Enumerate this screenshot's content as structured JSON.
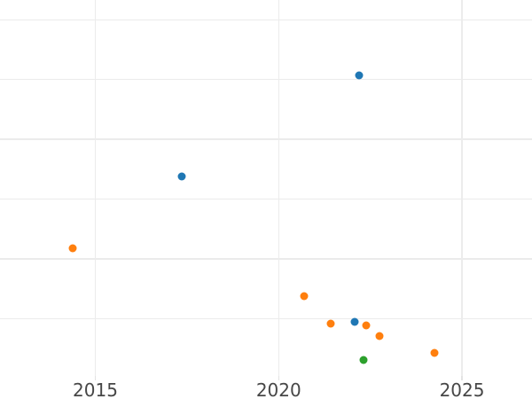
{
  "chart_data": {
    "type": "scatter",
    "title": "",
    "xlabel": "",
    "ylabel": "",
    "x_tick_labels": [
      "2015",
      "2020",
      "2025"
    ],
    "x_ticks": [
      2015,
      2020,
      2025
    ],
    "y_gridlines": [
      1,
      2,
      3,
      4,
      5,
      6
    ],
    "y_tick_labels_visible": false,
    "xlim": [
      2012.4,
      2026.91
    ],
    "ylim": [
      0,
      6.33
    ],
    "grid": true,
    "legend": "none",
    "series": [
      {
        "name": "blue-series",
        "color": "#1f77b4",
        "points": [
          {
            "x": 2017.36,
            "y": 3.38
          },
          {
            "x": 2022.19,
            "y": 5.07
          },
          {
            "x": 2022.07,
            "y": 0.95
          }
        ]
      },
      {
        "name": "orange-series",
        "color": "#ff7f0e",
        "points": [
          {
            "x": 2014.38,
            "y": 2.18
          },
          {
            "x": 2020.7,
            "y": 1.38
          },
          {
            "x": 2021.42,
            "y": 0.92
          },
          {
            "x": 2022.38,
            "y": 0.89
          },
          {
            "x": 2022.75,
            "y": 0.71
          },
          {
            "x": 2024.25,
            "y": 0.43
          }
        ]
      },
      {
        "name": "green-series",
        "color": "#2ca02c",
        "points": [
          {
            "x": 2022.32,
            "y": 0.31
          }
        ]
      }
    ]
  },
  "style": {
    "background_color": "#ffffff",
    "grid_color": "#ebebeb",
    "tick_label_color": "#474747"
  }
}
